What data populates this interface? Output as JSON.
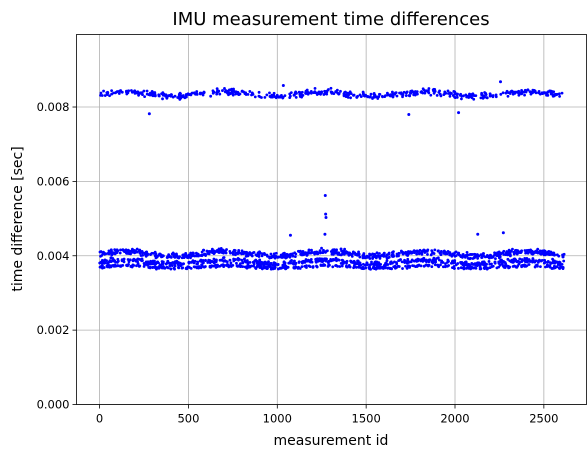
{
  "chart_data": {
    "type": "scatter",
    "title": "IMU measurement time differences",
    "xlabel": "measurement id",
    "ylabel": "time difference [sec]",
    "xlim": [
      -130,
      2740
    ],
    "ylim": [
      0,
      0.00995
    ],
    "xticks": [
      0,
      500,
      1000,
      1500,
      2000,
      2500
    ],
    "xtick_labels": [
      "0",
      "500",
      "1000",
      "1500",
      "2000",
      "2500"
    ],
    "yticks": [
      0,
      0.002,
      0.004,
      0.006,
      0.008
    ],
    "ytick_labels": [
      "0.000",
      "0.002",
      "0.004",
      "0.006",
      "0.008"
    ],
    "grid": true,
    "legend": "none",
    "marker_color": "#0000ff",
    "series": [
      {
        "x_range": [
          0,
          2616
        ],
        "bands": [
          {
            "center": 0.00835,
            "spread": 0.00012,
            "count": 560
          },
          {
            "center": 0.00405,
            "spread": 0.00012,
            "count": 780
          },
          {
            "center": 0.00383,
            "spread": 0.0001,
            "count": 620
          },
          {
            "center": 0.0037,
            "spread": 6e-05,
            "count": 420
          }
        ],
        "outliers": [
          {
            "x": 1270,
            "y": 0.00562
          },
          {
            "x": 1272,
            "y": 0.00512
          },
          {
            "x": 1274,
            "y": 0.00503
          },
          {
            "x": 1268,
            "y": 0.00458
          },
          {
            "x": 2272,
            "y": 0.00462
          },
          {
            "x": 1074,
            "y": 0.00455
          },
          {
            "x": 2128,
            "y": 0.00458
          },
          {
            "x": 280,
            "y": 0.00782
          },
          {
            "x": 1740,
            "y": 0.0078
          },
          {
            "x": 2020,
            "y": 0.00785
          },
          {
            "x": 2256,
            "y": 0.00868
          },
          {
            "x": 1034,
            "y": 0.00858
          }
        ]
      }
    ]
  }
}
